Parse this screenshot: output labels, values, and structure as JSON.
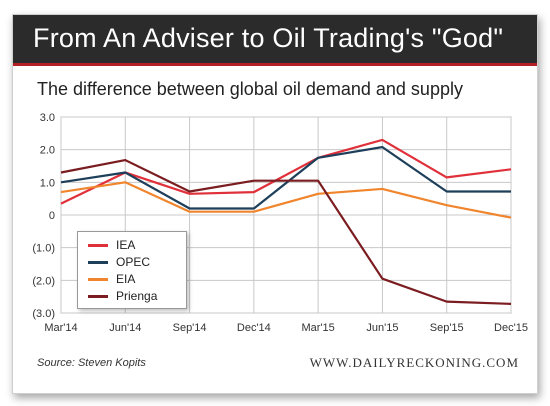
{
  "header": {
    "title": "From An Adviser to Oil Trading's \"God\"",
    "subtitle": "The difference between global oil demand and supply"
  },
  "footer": {
    "source": "Source: Steven Kopits",
    "brand": "WWW.DAILYRECKONING.COM"
  },
  "colors": {
    "title_bar": "#2b2b2b",
    "accent_rule": "#b32025"
  },
  "chart_data": {
    "type": "line",
    "title": "The difference between global oil demand and supply",
    "xlabel": "",
    "ylabel": "",
    "x": [
      "Mar'14",
      "Jun'14",
      "Sep'14",
      "Dec'14",
      "Mar'15",
      "Jun'15",
      "Sep'15",
      "Dec'15"
    ],
    "ylim": [
      -3.0,
      3.0
    ],
    "yticks": [
      3.0,
      2.0,
      1.0,
      0,
      -1.0,
      -2.0,
      -3.0
    ],
    "ytick_labels": [
      "3.0",
      "2.0",
      "1.0",
      "0",
      "(1.0)",
      "(2.0)",
      "(3.0)"
    ],
    "grid": true,
    "legend_position": "bottom-left",
    "series": [
      {
        "name": "IEA",
        "color": "#e0303a",
        "values": [
          0.35,
          1.3,
          0.65,
          0.7,
          1.75,
          2.3,
          1.15,
          1.4
        ]
      },
      {
        "name": "OPEC",
        "color": "#1d3f5a",
        "values": [
          1.0,
          1.3,
          0.2,
          0.2,
          1.75,
          2.08,
          0.72,
          0.72
        ]
      },
      {
        "name": "EIA",
        "color": "#f0852d",
        "values": [
          0.7,
          1.0,
          0.1,
          0.1,
          0.65,
          0.8,
          0.3,
          -0.08
        ]
      },
      {
        "name": "Prienga",
        "color": "#7a1c20",
        "values": [
          1.3,
          1.68,
          0.72,
          1.05,
          1.05,
          -1.95,
          -2.65,
          -2.72
        ]
      }
    ]
  }
}
